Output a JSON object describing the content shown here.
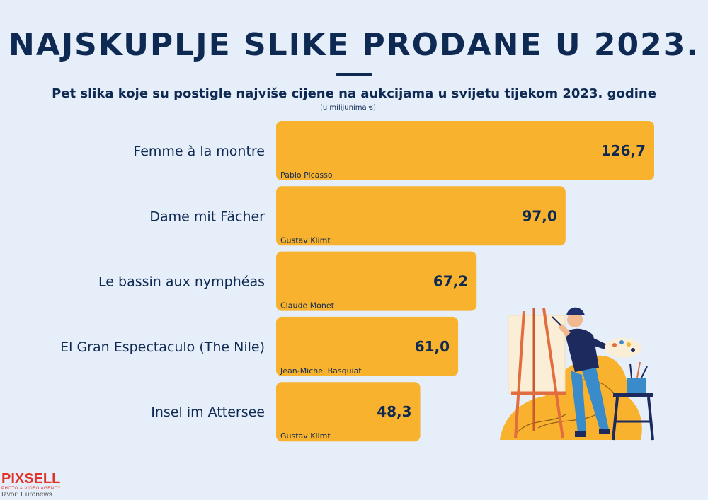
{
  "header": {
    "title": "NAJSKUPLJE SLIKE PRODANE U 2023.",
    "subtitle": "Pet slika koje su postigle najviše cijene na aukcijama u svijetu tijekom 2023. godine",
    "unit": "(u milijunima €)"
  },
  "colors": {
    "background": "#e6eefa",
    "bar": "#f9b22d",
    "text": "#0f2a52",
    "logo": "#e2332a"
  },
  "chart_data": {
    "type": "bar",
    "orientation": "horizontal",
    "title": "NAJSKUPLJE SLIKE PRODANE U 2023.",
    "subtitle": "Pet slika koje su postigle najviše cijene na aukcijama u svijetu tijekom 2023. godine",
    "unit": "(u milijunima €)",
    "categories": [
      "Femme à la montre",
      "Dame mit Fächer",
      "Le bassin aux nymphéas",
      "El Gran Espectaculo (The Nile)",
      "Insel im Attersee"
    ],
    "artists": [
      "Pablo Picasso",
      "Gustav Klimt",
      "Claude Monet",
      "Jean-Michel Basquiat",
      "Gustav Klimt"
    ],
    "values": [
      126.7,
      97.0,
      67.2,
      61.0,
      48.3
    ],
    "value_labels": [
      "126,7",
      "97,0",
      "67,2",
      "61,0",
      "48,3"
    ],
    "xlim": [
      0,
      126.7
    ],
    "grid": false,
    "legend": "none"
  },
  "footer": {
    "logo_main": "PIXSELL",
    "logo_sub": "PHOTO & VIDEO AGENCY",
    "source": "Izvor: Euronews"
  },
  "illustration": {
    "icon": "painter-at-easel-illustration"
  }
}
